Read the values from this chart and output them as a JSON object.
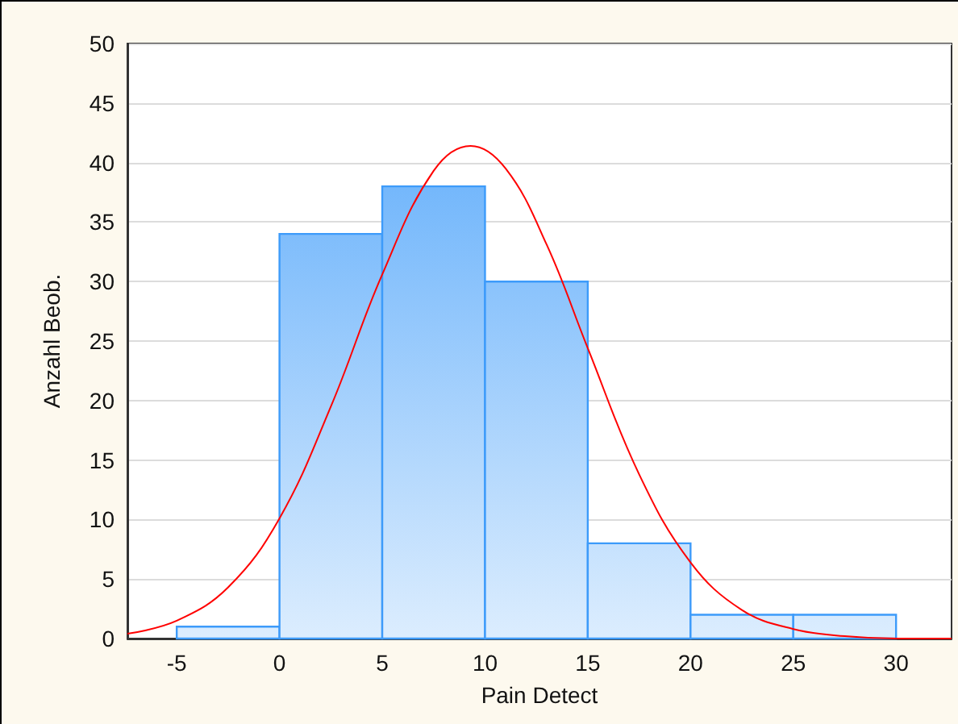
{
  "chart_data": {
    "type": "histogram",
    "xlabel": "Pain Detect",
    "ylabel": "Anzahl Beob.",
    "bins": [
      -5,
      0,
      5,
      10,
      15,
      20,
      25,
      30
    ],
    "values": [
      1,
      34,
      38,
      30,
      8,
      2,
      2
    ],
    "color": "#3d9bfa",
    "series": [
      {
        "type": "line",
        "color": "#ff0000",
        "x": [
          -7.4,
          -5,
          -2.5,
          0,
          2.5,
          5,
          7.5,
          9.3,
          11,
          13,
          15,
          17.5,
          20,
          22.5,
          25,
          27.5,
          30,
          32.7
        ],
        "values": [
          0.4,
          1.5,
          4.3,
          10.1,
          19.5,
          30.6,
          39.3,
          41.4,
          39.5,
          33.1,
          24.4,
          13.8,
          6.4,
          2.4,
          0.8,
          0.2,
          0,
          0
        ]
      }
    ],
    "xlim": [
      -7.4,
      32.7
    ],
    "xticks": [
      -5,
      0,
      5,
      10,
      15,
      20,
      25,
      30
    ],
    "ylim": [
      0,
      50
    ],
    "yticks": [
      0,
      5,
      10,
      15,
      20,
      25,
      30,
      35,
      40,
      45,
      50
    ],
    "grid": "y",
    "marker": "none"
  }
}
